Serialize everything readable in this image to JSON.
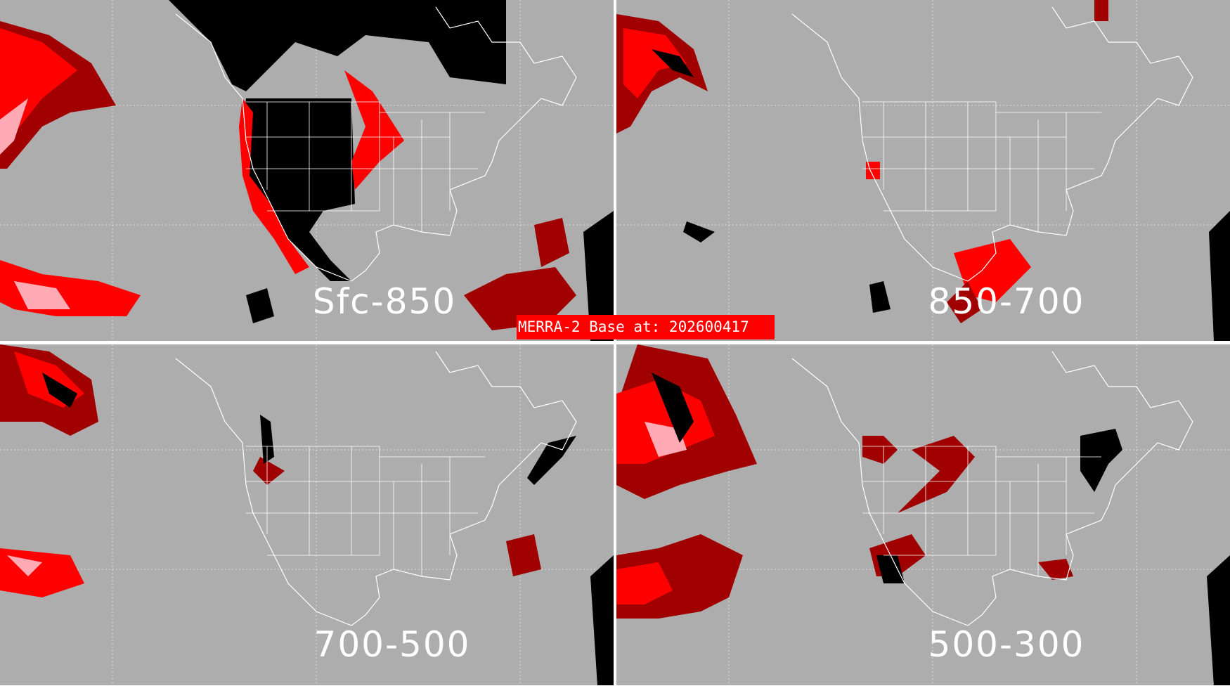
{
  "title": "MERRA-2 Base at: 202600417",
  "colors": {
    "background": "#adadad",
    "dark_red": "#a00000",
    "red": "#ff0000",
    "pink": "#ffaab4",
    "black": "#000000",
    "coast": "#ffffff"
  },
  "panels": [
    {
      "label": "Sfc-850"
    },
    {
      "label": "850-700"
    },
    {
      "label": "700-500"
    },
    {
      "label": "500-300"
    }
  ]
}
